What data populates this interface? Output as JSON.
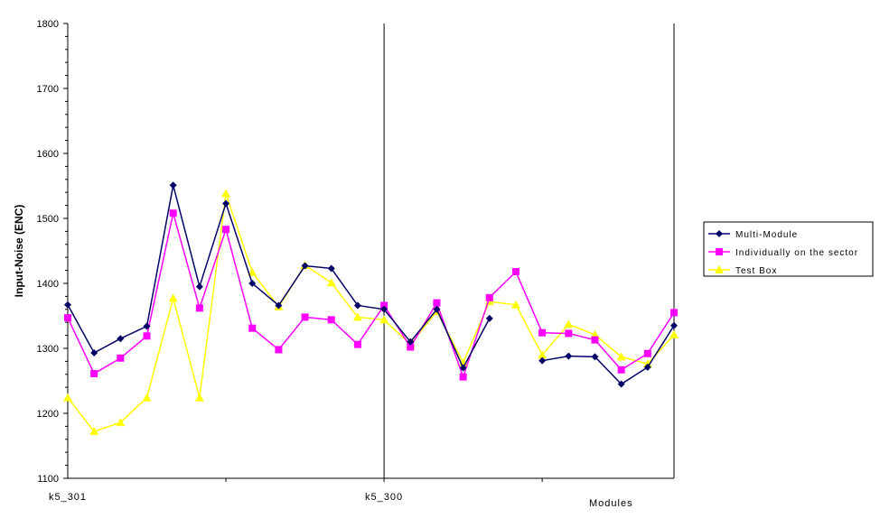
{
  "chart_data": {
    "type": "line",
    "ylabel": "Input-Noise (ENC)",
    "xlabel": "Modules",
    "ylim": [
      1100,
      1800
    ],
    "yticks": [
      1100,
      1200,
      1300,
      1400,
      1500,
      1600,
      1700,
      1800
    ],
    "category_labels": [
      {
        "index": 0,
        "label": "k5_301"
      },
      {
        "index": 12,
        "label": "k5_300"
      }
    ],
    "grid": false,
    "legend_position": "right",
    "series": [
      {
        "name": "Multi-Module",
        "color": "#000066",
        "marker": "diamond",
        "values": [
          1367,
          1293,
          1315,
          1334,
          1551,
          1395,
          1523,
          1400,
          1366,
          1427,
          1423,
          1366,
          1360,
          1310,
          1360,
          1270,
          1346,
          null,
          1281,
          1288,
          1287,
          1245,
          1271,
          1335
        ]
      },
      {
        "name": "Individually on the sector",
        "color": "#ff00ff",
        "marker": "square",
        "values": [
          1347,
          1261,
          1285,
          1319,
          1508,
          1362,
          1483,
          1331,
          1298,
          1348,
          1344,
          1306,
          1366,
          1302,
          1370,
          1256,
          1378,
          1418,
          1324,
          1323,
          1313,
          1267,
          1292,
          1355
        ]
      },
      {
        "name": "Test Box",
        "color": "#ffff00",
        "marker": "triangle",
        "values": [
          1224,
          1172,
          1186,
          1224,
          1377,
          1224,
          1538,
          1417,
          1364,
          1428,
          1401,
          1348,
          1344,
          1306,
          1357,
          1278,
          1372,
          1367,
          1290,
          1337,
          1321,
          1287,
          1276,
          1321
        ]
      }
    ]
  }
}
